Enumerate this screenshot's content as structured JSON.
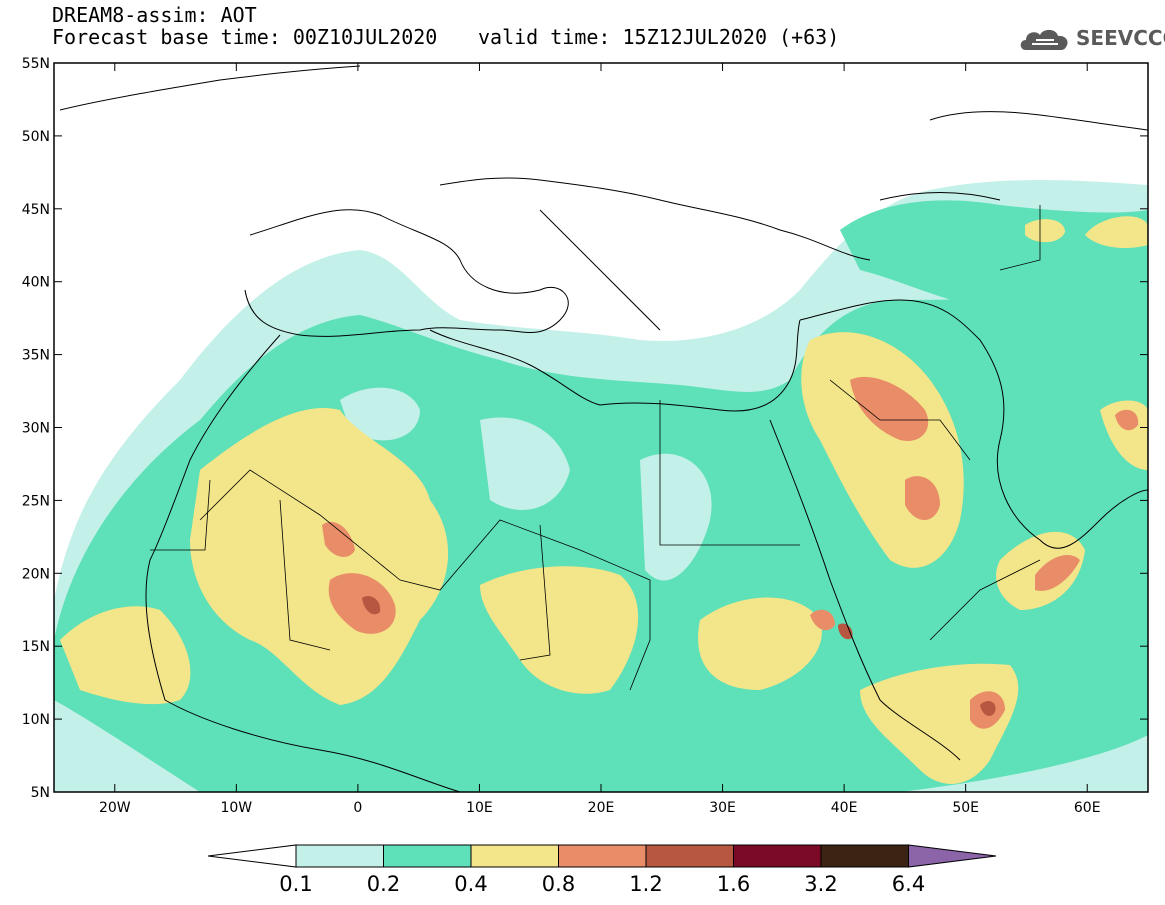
{
  "title": {
    "line1": "DREAM8-assim: AOT",
    "line2": "Forecast base time: 00Z10JUL2020",
    "valid": "valid time: 15Z12JUL2020 (+63)"
  },
  "logo": {
    "text": "SEEVCCC",
    "icon": "cloud-icon"
  },
  "map": {
    "lon_range": [
      -25,
      65
    ],
    "lat_range": [
      5,
      55
    ],
    "lat_ticks": [
      {
        "value": 55,
        "label": "55N"
      },
      {
        "value": 50,
        "label": "50N"
      },
      {
        "value": 45,
        "label": "45N"
      },
      {
        "value": 40,
        "label": "40N"
      },
      {
        "value": 35,
        "label": "35N"
      },
      {
        "value": 30,
        "label": "30N"
      },
      {
        "value": 25,
        "label": "25N"
      },
      {
        "value": 20,
        "label": "20N"
      },
      {
        "value": 15,
        "label": "15N"
      },
      {
        "value": 10,
        "label": "10N"
      },
      {
        "value": 5,
        "label": "5N"
      }
    ],
    "lon_ticks": [
      {
        "value": -20,
        "label": "20W"
      },
      {
        "value": -10,
        "label": "10W"
      },
      {
        "value": 0,
        "label": "0"
      },
      {
        "value": 10,
        "label": "10E"
      },
      {
        "value": 20,
        "label": "20E"
      },
      {
        "value": 30,
        "label": "30E"
      },
      {
        "value": 40,
        "label": "40E"
      },
      {
        "value": 50,
        "label": "50E"
      },
      {
        "value": 60,
        "label": "60E"
      }
    ]
  },
  "colorbar": {
    "labels": [
      "0.1",
      "0.2",
      "0.4",
      "0.8",
      "1.2",
      "1.6",
      "3.2",
      "6.4"
    ],
    "colors": [
      "#ffffff",
      "#c3f0e8",
      "#5ee0b8",
      "#f3e58a",
      "#e98d68",
      "#b75742",
      "#7b0a26",
      "#3c2414",
      "#8c64a8"
    ]
  }
}
